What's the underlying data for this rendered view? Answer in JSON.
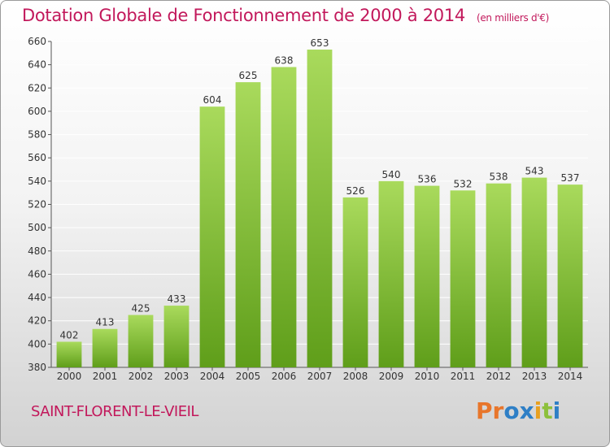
{
  "header": {
    "title": "Dotation Globale de Fonctionnement de 2000 à 2014",
    "unit": "(en milliers d'€)"
  },
  "footer": {
    "commune": "SAINT-FLORENT-LE-VIEIL",
    "logo": "Proxiti"
  },
  "colors": {
    "title": "#c2185b",
    "bar_light": "#a9da5c",
    "bar_dark": "#5f9e1a",
    "logo_letters": [
      "#e8762b",
      "#e8762b",
      "#2e7fc6",
      "#2e7fc6",
      "#e8a020",
      "#8dc03c",
      "#2e7fc6"
    ]
  },
  "chart_data": {
    "type": "bar",
    "title": "Dotation Globale de Fonctionnement de 2000 à 2014",
    "subtitle": "(en milliers d'€)",
    "xlabel": "",
    "ylabel": "",
    "categories": [
      "2000",
      "2001",
      "2002",
      "2003",
      "2004",
      "2005",
      "2006",
      "2007",
      "2008",
      "2009",
      "2010",
      "2011",
      "2012",
      "2013",
      "2014"
    ],
    "values": [
      402,
      413,
      425,
      433,
      604,
      625,
      638,
      653,
      526,
      540,
      536,
      532,
      538,
      543,
      537
    ],
    "ylim": [
      380,
      660
    ],
    "yticks": [
      380,
      400,
      420,
      440,
      460,
      480,
      500,
      520,
      540,
      560,
      580,
      600,
      620,
      640,
      660
    ],
    "grid": true,
    "legend": "none"
  }
}
